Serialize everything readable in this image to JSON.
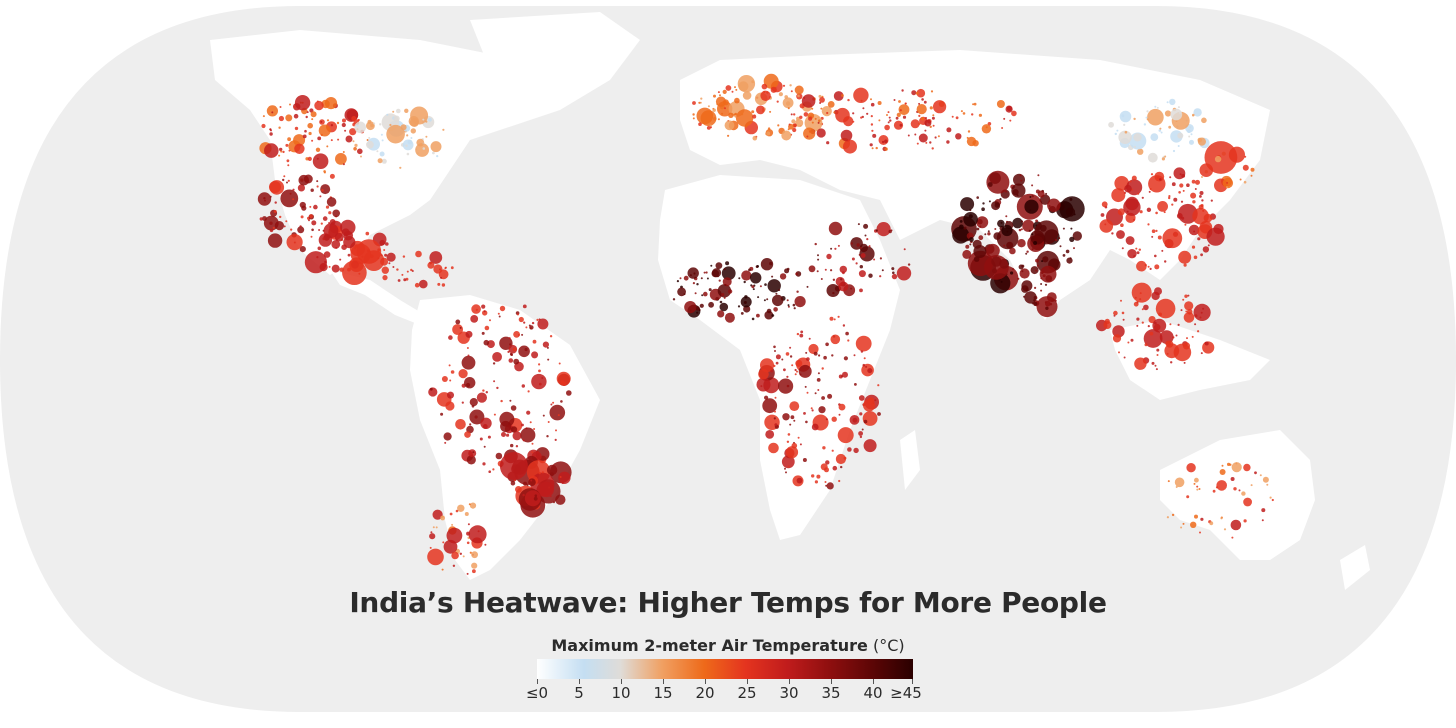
{
  "map": {
    "title": "India’s Heatwave: Higher Temps for More People",
    "projection": "world-robinson-like",
    "ocean_color": "#eeeeee",
    "land_color": "#ffffff"
  },
  "legend": {
    "label": "Maximum 2-meter Air Temperature",
    "unit": "(°C)",
    "ticks": [
      "≤0",
      "5",
      "10",
      "15",
      "20",
      "25",
      "30",
      "35",
      "40",
      "≥45"
    ],
    "colors": [
      "#ffffff",
      "#c4def2",
      "#dfdcd8",
      "#f0a062",
      "#ee6a1a",
      "#e4341f",
      "#c01c1c",
      "#8f0f0f",
      "#5e0606",
      "#2a0000"
    ]
  }
}
